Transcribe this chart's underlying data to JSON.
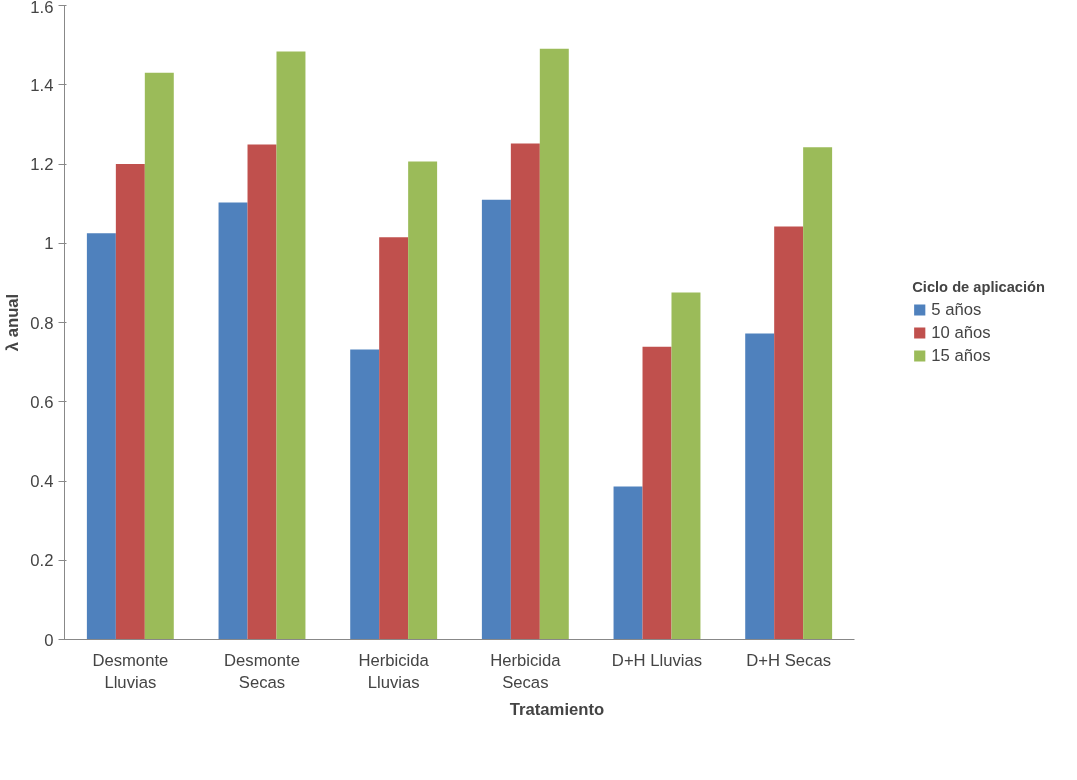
{
  "chart_data": {
    "type": "bar",
    "xlabel": "Tratamiento",
    "ylabel": "λ anual",
    "legend_title": "Ciclo de aplicación",
    "categories": [
      "Desmonte\nLluvias",
      "Desmonte\nSecas",
      "Herbicida\nLluvias",
      "Herbicida\nSecas",
      "D+H Lluvias",
      "D+H Secas"
    ],
    "series": [
      {
        "name": "5 años",
        "color": "#4f81bd",
        "values": [
          1.025,
          1.103,
          0.732,
          1.11,
          0.386,
          0.772
        ]
      },
      {
        "name": "10 años",
        "color": "#c0504d",
        "values": [
          1.2,
          1.249,
          1.015,
          1.252,
          0.739,
          1.042
        ]
      },
      {
        "name": "15 años",
        "color": "#9bbb59",
        "values": [
          1.43,
          1.484,
          1.206,
          1.491,
          0.876,
          1.242
        ]
      }
    ],
    "ylim": [
      0,
      1.6
    ],
    "yticks": [
      0,
      0.2,
      0.4,
      0.6,
      0.8,
      1,
      1.2,
      1.4,
      1.6
    ],
    "grid": false,
    "legend": "right"
  }
}
